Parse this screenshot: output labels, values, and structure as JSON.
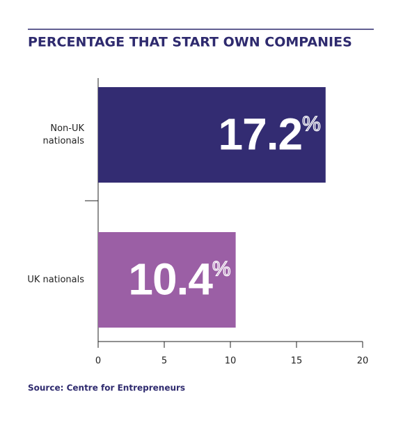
{
  "chart_data": {
    "type": "barh",
    "title": "PERCENTAGE THAT START OWN COMPANIES",
    "categories": [
      "Non-UK\nnationals",
      "UK nationals"
    ],
    "values": [
      17.2,
      10.4
    ],
    "value_labels": [
      "17.2%",
      "10.4%"
    ],
    "colors": [
      "#332c72",
      "#9b5fa5"
    ],
    "xlim": [
      0,
      20
    ],
    "xticks": [
      0,
      5,
      10,
      15,
      20
    ],
    "grid": false,
    "source": "Source: Centre for Entrepreneurs"
  }
}
